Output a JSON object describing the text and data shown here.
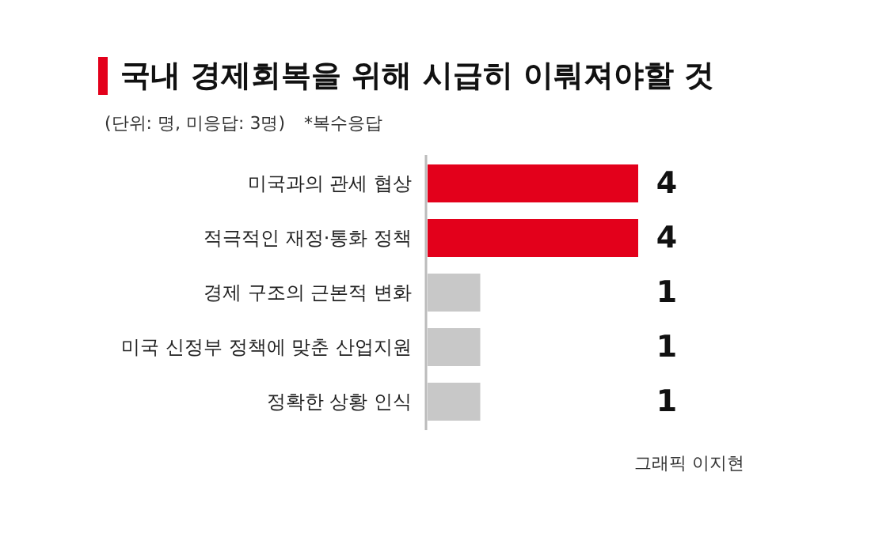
{
  "chart_data": {
    "type": "bar",
    "orientation": "horizontal",
    "title": "국내 경제회복을 위해 시급히 이뤄져야할 것",
    "subtitle": "(단위: 명, 미응답: 3명)",
    "categories": [
      "미국과의 관세 협상",
      "적극적인 재정·통화 정책",
      "경제 구조의 근본적 변화",
      "미국 신정부 정책에 맞춘 산업지원",
      "정확한 상황 인식"
    ],
    "values": [
      4,
      4,
      1,
      1,
      1
    ],
    "colors": [
      "#e3001b",
      "#e3001b",
      "#c8c8c8",
      "#c8c8c8",
      "#c8c8c8"
    ],
    "data_labels": true,
    "annotations": [
      "*복수응답",
      "그래픽 이지현"
    ]
  }
}
